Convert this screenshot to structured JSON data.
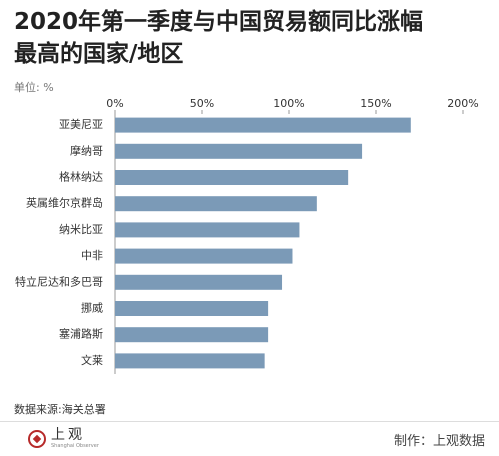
{
  "chart_data": {
    "type": "bar",
    "orientation": "horizontal",
    "title": [
      "2020年第一季度与中国贸易额同比涨幅",
      "最高的国家/地区"
    ],
    "unit_label": "单位: %",
    "categories": [
      "亚美尼亚",
      "摩纳哥",
      "格林纳达",
      "英属维尔京群岛",
      "纳米比亚",
      "中非",
      "特立尼达和多巴哥",
      "挪威",
      "塞浦路斯",
      "文莱"
    ],
    "values": [
      170,
      142,
      134,
      116,
      106,
      102,
      96,
      88,
      88,
      86
    ],
    "color": "#7b9ab7",
    "xlim": [
      0,
      200
    ],
    "xticks": [
      {
        "value": 0,
        "label": "0%"
      },
      {
        "value": 50,
        "label": "50%"
      },
      {
        "value": 100,
        "label": "100%"
      },
      {
        "value": 150,
        "label": "150%"
      },
      {
        "value": 200,
        "label": "200%"
      }
    ],
    "source": "数据来源:海关总署"
  },
  "footer": {
    "logo": "上观",
    "logo_subtitle": "Shanghai Observer",
    "credit": "制作：上观数据"
  }
}
